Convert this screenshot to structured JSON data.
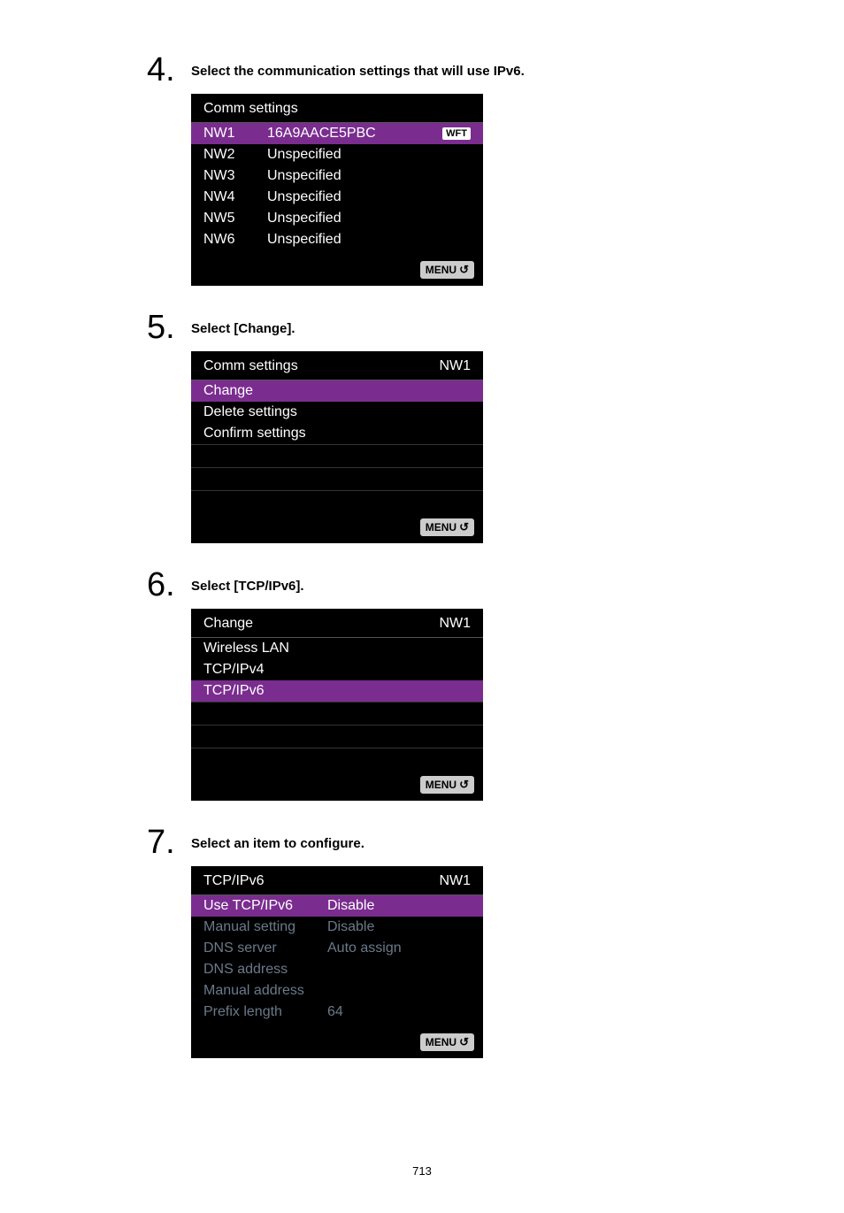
{
  "steps": {
    "s4": {
      "num": "4.",
      "text": "Select the communication settings that will use IPv6."
    },
    "s5": {
      "num": "5.",
      "text": "Select [Change]."
    },
    "s6": {
      "num": "6.",
      "text": "Select [TCP/IPv6]."
    },
    "s7": {
      "num": "7.",
      "text": "Select an item to configure."
    }
  },
  "screen4": {
    "title": "Comm settings",
    "rows": [
      {
        "c1": "NW1",
        "c2": "16A9AACE5PBC",
        "badge": "WFT",
        "selected": true
      },
      {
        "c1": "NW2",
        "c2": "Unspecified"
      },
      {
        "c1": "NW3",
        "c2": "Unspecified"
      },
      {
        "c1": "NW4",
        "c2": "Unspecified"
      },
      {
        "c1": "NW5",
        "c2": "Unspecified"
      },
      {
        "c1": "NW6",
        "c2": "Unspecified"
      }
    ],
    "footer": "MENU"
  },
  "screen5": {
    "title": "Comm settings",
    "title_right": "NW1",
    "rows": [
      {
        "label": "Change",
        "selected": true
      },
      {
        "label": "Delete settings"
      },
      {
        "label": "Confirm settings"
      }
    ],
    "footer": "MENU"
  },
  "screen6": {
    "title": "Change",
    "title_right": "NW1",
    "rows": [
      {
        "label": "Wireless LAN"
      },
      {
        "label": "TCP/IPv4"
      },
      {
        "label": "TCP/IPv6",
        "selected": true
      }
    ],
    "footer": "MENU"
  },
  "screen7": {
    "title": "TCP/IPv6",
    "title_right": "NW1",
    "rows": [
      {
        "c1": "Use TCP/IPv6",
        "c2": "Disable",
        "selected": true
      },
      {
        "c1": "Manual setting",
        "c2": "Disable",
        "dimmed": true
      },
      {
        "c1": "DNS server",
        "c2": "Auto assign",
        "dimmed": true
      },
      {
        "c1": "DNS address",
        "c2": "",
        "dimmed": true
      },
      {
        "c1": "Manual address",
        "c2": "",
        "dimmed": true
      },
      {
        "c1": "Prefix length",
        "c2": "64",
        "dimmed": true
      }
    ],
    "footer": "MENU"
  },
  "page_number": "713"
}
